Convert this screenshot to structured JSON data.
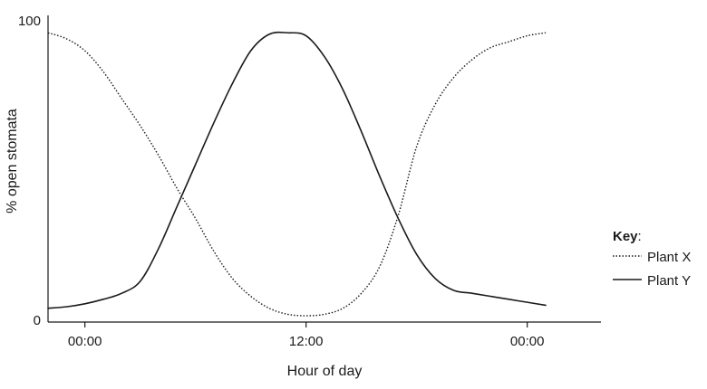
{
  "chart_data": {
    "type": "line",
    "title": "",
    "xlabel": "Hour of day",
    "ylabel": "% open stomata",
    "ylim": [
      0,
      100
    ],
    "xlim": [
      -2,
      28
    ],
    "y_ticks": [
      {
        "value": 0,
        "label": "0"
      },
      {
        "value": 100,
        "label": "100"
      }
    ],
    "x_ticks": [
      {
        "value": 0,
        "label": "00:00"
      },
      {
        "value": 12,
        "label": "12:00"
      },
      {
        "value": 24,
        "label": "00:00"
      }
    ],
    "legend": {
      "title": "Key",
      "title_suffix": ":",
      "placement": "right"
    },
    "series": [
      {
        "name": "Plant X",
        "style": "dotted",
        "color": "#1a1a1a",
        "x": [
          -2,
          -1,
          0,
          1,
          2,
          3,
          4,
          5,
          6,
          7,
          8,
          9,
          10,
          11,
          12,
          13,
          14,
          15,
          16,
          17,
          18,
          19,
          20,
          21,
          22,
          23,
          24,
          25
        ],
        "y": [
          96,
          94,
          90,
          83,
          74,
          65,
          55,
          44,
          34,
          23,
          14,
          8,
          4,
          2,
          1.5,
          2,
          4,
          9,
          18,
          35,
          58,
          72,
          81,
          87,
          91,
          93,
          95,
          96
        ]
      },
      {
        "name": "Plant Y",
        "style": "solid",
        "color": "#1a1a1a",
        "x": [
          -2,
          -1,
          0,
          1,
          2,
          3,
          4,
          5,
          6,
          7,
          8,
          9,
          10,
          11,
          12,
          13,
          14,
          15,
          16,
          17,
          18,
          19,
          20,
          21,
          22,
          23,
          24,
          25
        ],
        "y": [
          4,
          4.5,
          5.5,
          7,
          9,
          13,
          24,
          38,
          52,
          66,
          79,
          90,
          95.5,
          96,
          95,
          88,
          77,
          63,
          48,
          34,
          22,
          14,
          10,
          9,
          8,
          7,
          6,
          5
        ]
      }
    ]
  }
}
